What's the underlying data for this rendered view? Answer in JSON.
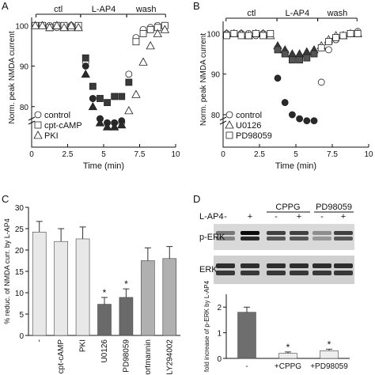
{
  "figure": {
    "panels": [
      "A",
      "B",
      "C",
      "D"
    ]
  },
  "chart_data": [
    {
      "panel": "A",
      "type": "scatter",
      "xlabel": "Time (min)",
      "ylabel": "Norm. peak NMDA current",
      "xlim": [
        0,
        10
      ],
      "ylim": [
        70,
        102
      ],
      "xticks": [
        "0",
        "2.5",
        "5",
        "7.5",
        "10"
      ],
      "yticks": [
        "80",
        "90",
        "100"
      ],
      "conditions": [
        {
          "label": "ctl",
          "x0": 0.3,
          "x1": 3.4
        },
        {
          "label": "L-AP4",
          "x0": 3.4,
          "x1": 6.6
        },
        {
          "label": "wash",
          "x0": 6.6,
          "x1": 9.3
        }
      ],
      "legend": "bottom-left",
      "series": [
        {
          "name": "control",
          "marker": "circle",
          "fill": "#ffffff",
          "x": [
            0.25,
            0.75,
            1.25,
            1.75,
            2.25,
            2.75,
            3.25,
            3.75,
            4.25,
            4.75,
            5.25,
            5.75,
            6.25,
            6.75,
            7.25,
            7.75,
            8.25,
            8.75,
            9.25
          ],
          "y": [
            100,
            100,
            100,
            99.5,
            99.5,
            100,
            99.5,
            91,
            82,
            77,
            76,
            76,
            76,
            88,
            97,
            99,
            99.5,
            100,
            100
          ]
        },
        {
          "name": "control-L-AP4 (filled)",
          "marker": "circle",
          "fill": "#2a2a2a",
          "x": [
            3.75,
            4.25,
            4.75,
            5.25,
            5.75,
            6.25
          ],
          "y": [
            90,
            82,
            77,
            76,
            76,
            76.5
          ]
        },
        {
          "name": "cpt-cAMP",
          "marker": "square",
          "fill": "#ffffff",
          "x": [
            0.25,
            0.75,
            1.25,
            1.75,
            2.25,
            2.75,
            3.25,
            7.25,
            7.75,
            8.25,
            8.75,
            9.25
          ],
          "y": [
            100,
            100,
            99.5,
            100,
            100,
            99.5,
            100,
            96,
            98,
            99,
            99.5,
            100
          ]
        },
        {
          "name": "cpt-cAMP-L-AP4 (filled)",
          "marker": "square",
          "fill": "#3a3a3a",
          "x": [
            3.75,
            4.25,
            4.75,
            5.25,
            5.75,
            6.25,
            6.75
          ],
          "y": [
            92,
            85,
            82,
            81,
            82.5,
            82.5,
            86
          ]
        },
        {
          "name": "PKI",
          "marker": "triangle",
          "fill": "#ffffff",
          "x": [
            0.25,
            0.75,
            1.25,
            1.75,
            2.25,
            2.75,
            3.25,
            6.75,
            7.25,
            7.75,
            8.25,
            8.75,
            9.25
          ],
          "y": [
            100,
            100,
            99.5,
            100,
            99.5,
            100,
            99.5,
            79,
            83,
            91,
            95,
            98,
            99
          ]
        },
        {
          "name": "PKI-L-AP4 (filled)",
          "marker": "triangle",
          "fill": "#2a2a2a",
          "x": [
            3.75,
            4.25,
            4.75,
            5.25,
            5.75,
            6.25
          ],
          "y": [
            88,
            80,
            76,
            75,
            75,
            75.5
          ]
        }
      ]
    },
    {
      "panel": "B",
      "type": "scatter",
      "xlabel": "Time (min)",
      "ylabel": "Norm. peak NMDA current",
      "xlim": [
        0,
        10
      ],
      "ylim": [
        72,
        103
      ],
      "xticks": [
        "0",
        "2.5",
        "5",
        "7.5",
        "10"
      ],
      "yticks": [
        "80",
        "90",
        "100"
      ],
      "conditions": [
        {
          "label": "ctl",
          "x0": 0.2,
          "x1": 3.7
        },
        {
          "label": "L-AP4",
          "x0": 3.7,
          "x1": 6.5
        },
        {
          "label": "wash",
          "x0": 6.5,
          "x1": 9.2
        }
      ],
      "legend": "bottom-left",
      "series": [
        {
          "name": "control",
          "marker": "circle",
          "fill": "#ffffff",
          "x": [
            0.25,
            0.75,
            1.25,
            1.75,
            2.25,
            2.75,
            3.25,
            6.75,
            7.25,
            7.75,
            8.25,
            8.75,
            9.25
          ],
          "y": [
            100,
            100,
            100,
            100,
            99.5,
            100,
            100,
            88,
            96,
            98.5,
            99.5,
            100,
            100.5
          ]
        },
        {
          "name": "control-L-AP4 (filled)",
          "marker": "circle",
          "fill": "#2a2a2a",
          "x": [
            3.75,
            4.25,
            4.75,
            5.25,
            5.75,
            6.25
          ],
          "y": [
            89,
            83,
            80,
            79,
            78.5,
            78.5
          ]
        },
        {
          "name": "U0126",
          "marker": "triangle",
          "fill": "#ffffff",
          "x": [
            0.25,
            0.75,
            1.25,
            1.75,
            2.25,
            2.75,
            3.25,
            6.75,
            7.25,
            7.75,
            8.25,
            8.75,
            9.25
          ],
          "y": [
            100,
            100,
            100,
            99.5,
            100,
            100,
            99.5,
            97,
            98.5,
            99.5,
            99.5,
            100,
            100
          ]
        },
        {
          "name": "U0126-L-AP4 (filled)",
          "marker": "triangle",
          "fill": "#3a3a3a",
          "x": [
            3.75,
            4.25,
            4.75,
            5.25,
            5.75,
            6.25
          ],
          "y": [
            97,
            96,
            95,
            95,
            95.5,
            96
          ]
        },
        {
          "name": "PD98059",
          "marker": "square",
          "fill": "#ffffff",
          "x": [
            0.25,
            0.75,
            1.25,
            1.75,
            2.25,
            2.75,
            3.25,
            6.75,
            7.25,
            7.75,
            8.25,
            8.75,
            9.25
          ],
          "y": [
            99.5,
            100,
            99.5,
            99.5,
            100,
            99.5,
            100,
            96.5,
            98,
            99,
            99.5,
            100,
            100
          ]
        },
        {
          "name": "PD98059-L-AP4 (filled)",
          "marker": "square",
          "fill": "#555555",
          "x": [
            3.75,
            4.25,
            4.75,
            5.25,
            5.75,
            6.25
          ],
          "y": [
            96,
            95,
            93.5,
            93.5,
            94,
            95
          ]
        }
      ]
    },
    {
      "panel": "C",
      "type": "bar",
      "ylabel": "% reduc. of NMDA curr. by L-AP4",
      "ylim": [
        0,
        30
      ],
      "yticks": [
        "0",
        "5",
        "10",
        "15",
        "20",
        "25",
        "30"
      ],
      "categories": [
        "-",
        "cpt-cAMP",
        "PKI",
        "U0126",
        "PD98059",
        "wortmannin",
        "LY294002"
      ],
      "values": [
        24.2,
        22,
        22.6,
        7.3,
        8.9,
        17.5,
        18
      ],
      "errors": [
        2.5,
        3,
        2.8,
        1.6,
        2,
        3,
        2.8
      ],
      "significance": [
        "",
        "",
        "",
        "*",
        "*",
        "",
        ""
      ],
      "colors": [
        "#e8e8e8",
        "#e8e8e8",
        "#e8e8e8",
        "#6a6a6a",
        "#6a6a6a",
        "#b0b0b0",
        "#b0b0b0"
      ]
    },
    {
      "panel": "D",
      "type": "bar",
      "ylabel": "fold increase of p-ERK by L-AP4",
      "ylim": [
        0,
        2.5
      ],
      "yticks": [
        "0",
        "1",
        "2"
      ],
      "categories": [
        "-",
        "+CPPG",
        "+PD98059"
      ],
      "values": [
        1.8,
        0.2,
        0.3
      ],
      "errors": [
        0.2,
        0.05,
        0.06
      ],
      "significance": [
        "",
        "*",
        "*"
      ],
      "colors": [
        "#6e6e6e",
        "#eeeeee",
        "#eeeeee"
      ],
      "blot": {
        "row_label": "L-AP4",
        "lanes": [
          "-",
          "+",
          "-",
          "+",
          "-",
          "+"
        ],
        "groups": [
          "CPPG",
          "PD98059"
        ],
        "bands": [
          "p-ERK",
          "ERK"
        ]
      }
    }
  ]
}
